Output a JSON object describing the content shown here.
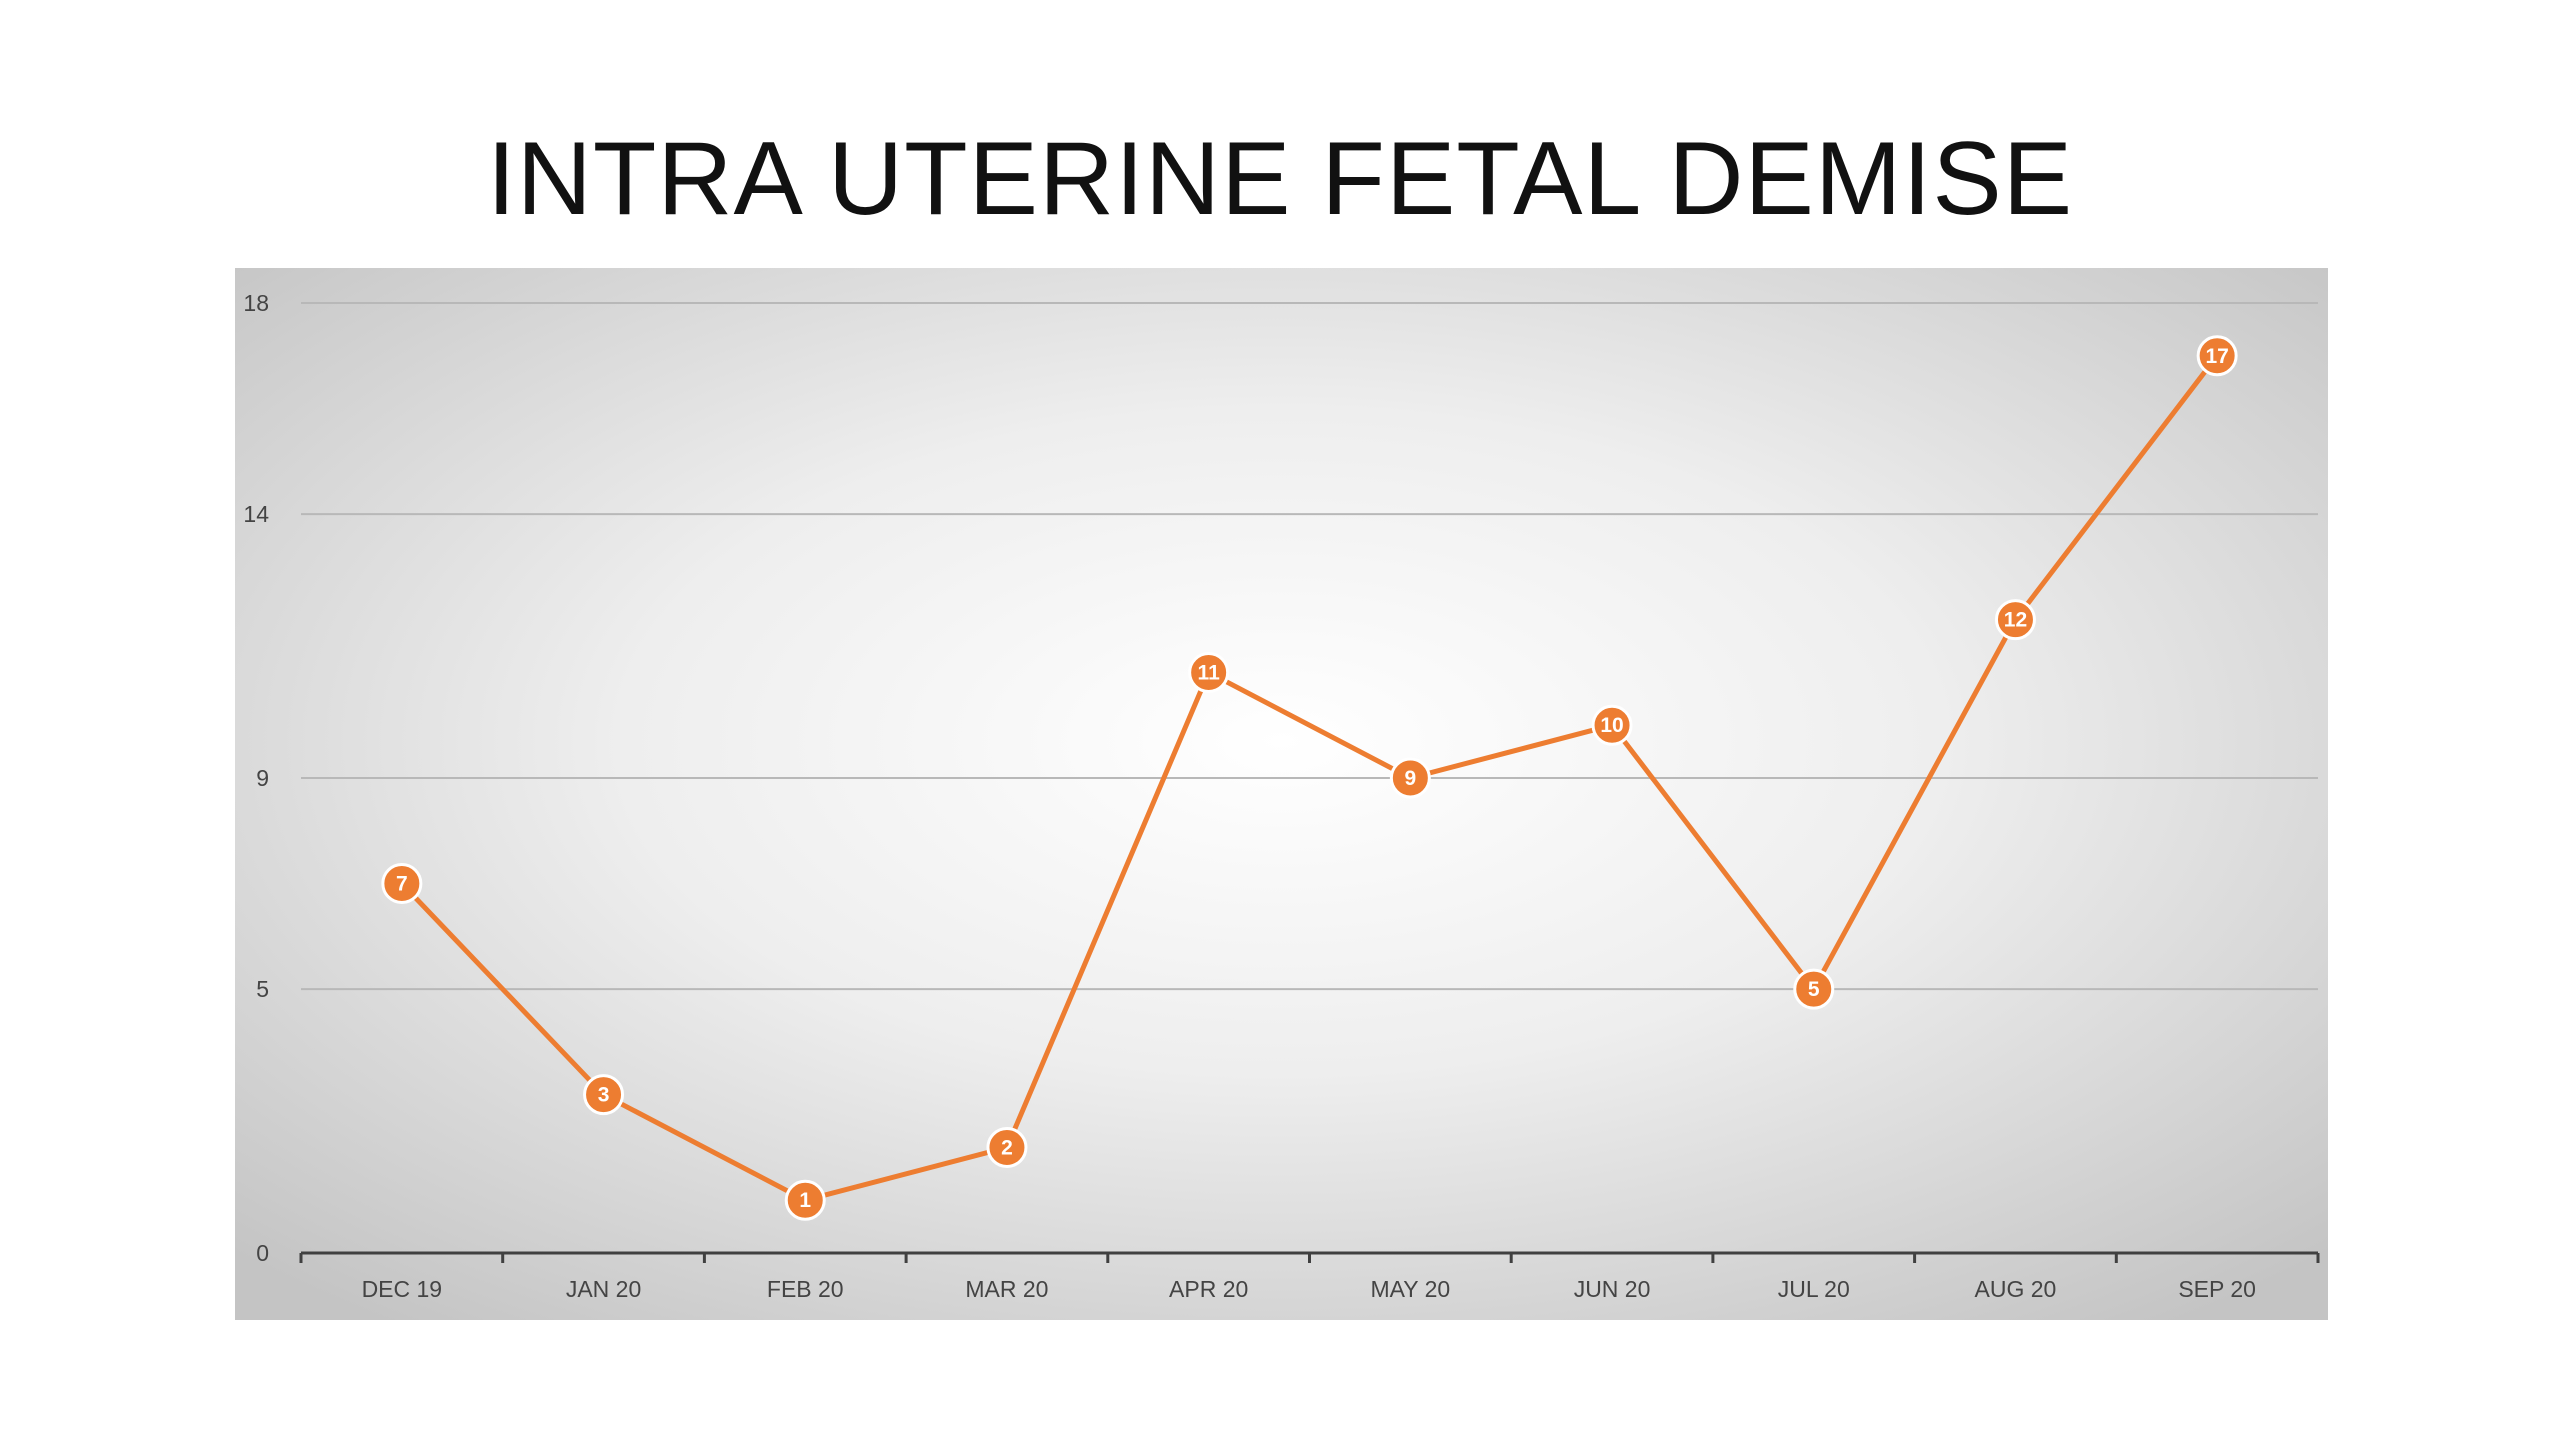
{
  "chart_data": {
    "type": "line",
    "title": "INTRA UTERINE FETAL DEMISE",
    "categories": [
      "DEC 19",
      "JAN 20",
      "FEB 20",
      "MAR 20",
      "APR 20",
      "MAY 20",
      "JUN 20",
      "JUL 20",
      "AUG 20",
      "SEP 20"
    ],
    "series": [
      {
        "values": [
          7,
          3,
          1,
          2,
          11,
          9,
          10,
          5,
          12,
          17
        ],
        "color": "#ED7D31"
      }
    ],
    "yticks": [
      "0",
      "5",
      "9",
      "14",
      "18"
    ],
    "ylim": [
      0,
      18
    ],
    "grid": true,
    "legend": "none",
    "background_colors": [
      "#ffffff",
      "#c4c4c4"
    ]
  }
}
